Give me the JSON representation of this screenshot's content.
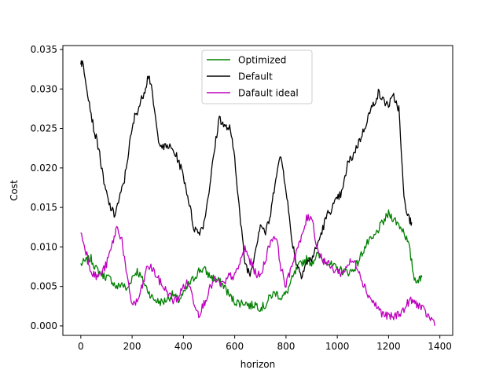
{
  "chart_data": {
    "type": "line",
    "title": "",
    "xlabel": "horizon",
    "ylabel": "Cost",
    "xlim": [
      -70,
      1450
    ],
    "ylim": [
      -0.0012,
      0.0355
    ],
    "xticks": [
      0,
      200,
      400,
      600,
      800,
      1000,
      1200,
      1400
    ],
    "xtick_labels": [
      "0",
      "200",
      "400",
      "600",
      "800",
      "1000",
      "1200",
      "1400"
    ],
    "yticks": [
      0.0,
      0.005,
      0.01,
      0.015,
      0.02,
      0.025,
      0.03,
      0.035
    ],
    "ytick_labels": [
      "0.000",
      "0.005",
      "0.010",
      "0.015",
      "0.020",
      "0.025",
      "0.030",
      "0.035"
    ],
    "grid": false,
    "legend_position": "top-center",
    "series": [
      {
        "name": "Optimized",
        "color": "#008000",
        "x": [
          0,
          20,
          40,
          60,
          80,
          100,
          120,
          140,
          160,
          180,
          200,
          220,
          240,
          260,
          280,
          300,
          320,
          340,
          360,
          380,
          400,
          420,
          440,
          460,
          480,
          500,
          520,
          540,
          560,
          580,
          600,
          620,
          640,
          660,
          680,
          700,
          720,
          740,
          760,
          780,
          800,
          820,
          840,
          860,
          880,
          900,
          920,
          940,
          960,
          980,
          1000,
          1020,
          1040,
          1060,
          1080,
          1100,
          1120,
          1140,
          1160,
          1180,
          1200,
          1220,
          1240,
          1260,
          1280,
          1300,
          1320,
          1330
        ],
        "y": [
          0.0078,
          0.0082,
          0.0085,
          0.0072,
          0.0066,
          0.0062,
          0.0058,
          0.0048,
          0.0054,
          0.0045,
          0.0062,
          0.007,
          0.0058,
          0.0046,
          0.0035,
          0.0031,
          0.003,
          0.0035,
          0.004,
          0.0032,
          0.004,
          0.0052,
          0.006,
          0.007,
          0.0072,
          0.0064,
          0.006,
          0.0056,
          0.005,
          0.0038,
          0.0031,
          0.0029,
          0.003,
          0.0025,
          0.0028,
          0.0023,
          0.0026,
          0.0038,
          0.0042,
          0.0036,
          0.004,
          0.0056,
          0.007,
          0.008,
          0.0084,
          0.008,
          0.009,
          0.0085,
          0.0082,
          0.0076,
          0.0072,
          0.007,
          0.0068,
          0.007,
          0.008,
          0.0095,
          0.0106,
          0.011,
          0.0122,
          0.0132,
          0.0142,
          0.0136,
          0.0128,
          0.012,
          0.01,
          0.006,
          0.0058,
          0.0065
        ]
      },
      {
        "name": "Default",
        "color": "#000000",
        "x": [
          0,
          10,
          30,
          50,
          70,
          90,
          110,
          130,
          150,
          170,
          190,
          210,
          230,
          250,
          265,
          280,
          300,
          320,
          340,
          360,
          380,
          400,
          420,
          440,
          460,
          480,
          500,
          520,
          540,
          560,
          580,
          600,
          620,
          640,
          660,
          680,
          700,
          720,
          740,
          760,
          780,
          800,
          820,
          840,
          860,
          880,
          900,
          920,
          940,
          960,
          980,
          1000,
          1020,
          1040,
          1060,
          1080,
          1100,
          1120,
          1140,
          1160,
          1180,
          1200,
          1220,
          1240,
          1260,
          1280,
          1290
        ],
        "y": [
          0.0335,
          0.033,
          0.029,
          0.025,
          0.0225,
          0.018,
          0.0155,
          0.014,
          0.016,
          0.0185,
          0.023,
          0.0265,
          0.028,
          0.03,
          0.032,
          0.029,
          0.024,
          0.0225,
          0.0228,
          0.0222,
          0.021,
          0.019,
          0.016,
          0.0125,
          0.0118,
          0.013,
          0.0172,
          0.022,
          0.0265,
          0.0252,
          0.025,
          0.0215,
          0.014,
          0.008,
          0.0065,
          0.0095,
          0.013,
          0.0118,
          0.014,
          0.019,
          0.0215,
          0.0175,
          0.0115,
          0.008,
          0.0065,
          0.008,
          0.0085,
          0.01,
          0.012,
          0.014,
          0.015,
          0.016,
          0.017,
          0.0205,
          0.0215,
          0.023,
          0.0245,
          0.0265,
          0.028,
          0.0295,
          0.0285,
          0.028,
          0.029,
          0.0275,
          0.016,
          0.0135,
          0.013
        ]
      },
      {
        "name": "Dafault ideal",
        "color": "#bf00bf",
        "x": [
          0,
          20,
          40,
          60,
          80,
          100,
          120,
          140,
          160,
          180,
          200,
          220,
          240,
          260,
          280,
          300,
          320,
          340,
          360,
          380,
          400,
          420,
          440,
          460,
          480,
          500,
          520,
          540,
          560,
          580,
          600,
          620,
          640,
          660,
          680,
          700,
          720,
          740,
          760,
          780,
          800,
          820,
          840,
          860,
          880,
          900,
          920,
          940,
          960,
          980,
          1000,
          1020,
          1040,
          1060,
          1080,
          1100,
          1120,
          1140,
          1160,
          1180,
          1200,
          1220,
          1240,
          1260,
          1280,
          1300,
          1320,
          1340,
          1360,
          1380
        ],
        "y": [
          0.0118,
          0.0095,
          0.007,
          0.0062,
          0.0066,
          0.0078,
          0.01,
          0.0125,
          0.011,
          0.006,
          0.0028,
          0.003,
          0.005,
          0.0076,
          0.0072,
          0.006,
          0.005,
          0.0042,
          0.0032,
          0.0036,
          0.005,
          0.0055,
          0.0032,
          0.0015,
          0.0028,
          0.0045,
          0.0058,
          0.0055,
          0.0052,
          0.0064,
          0.0062,
          0.008,
          0.0098,
          0.0082,
          0.0068,
          0.0062,
          0.0085,
          0.0108,
          0.0115,
          0.0075,
          0.005,
          0.0075,
          0.0095,
          0.011,
          0.0135,
          0.014,
          0.01,
          0.0085,
          0.008,
          0.0072,
          0.007,
          0.0066,
          0.0078,
          0.0082,
          0.0075,
          0.0055,
          0.004,
          0.003,
          0.0022,
          0.0014,
          0.0012,
          0.0011,
          0.0016,
          0.002,
          0.0032,
          0.003,
          0.0026,
          0.0018,
          0.001,
          0.0005
        ]
      }
    ]
  }
}
